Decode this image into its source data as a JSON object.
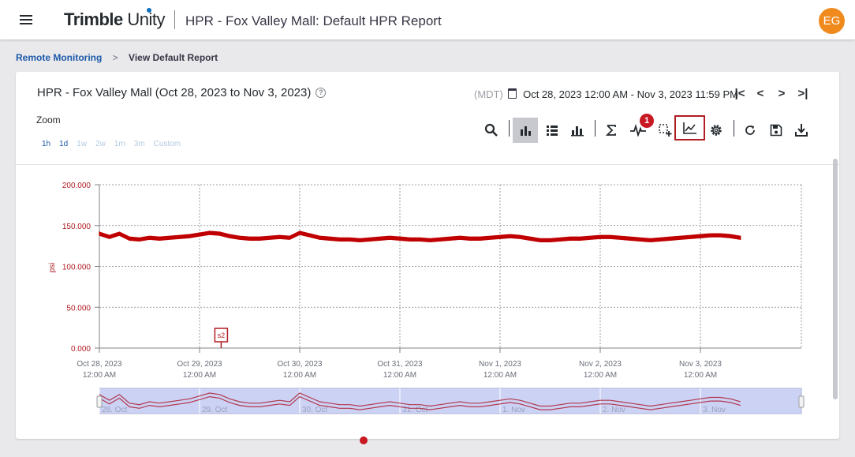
{
  "app": {
    "brand_bold": "Trimble",
    "brand_light": " Unity",
    "page_title": "HPR - Fox Valley Mall: Default HPR Report",
    "avatar_initials": "EG",
    "avatar_color": "#f08a1d"
  },
  "breadcrumb": {
    "parent": "Remote Monitoring",
    "separator": ">",
    "current": "View Default Report"
  },
  "report": {
    "title": "HPR - Fox Valley Mall (Oct 28, 2023 to Nov 3, 2023)",
    "help_icon": "?",
    "timezone": "(MDT)",
    "range_text": "Oct 28, 2023 12:00 AM - Nov 3, 2023 11:59 PM",
    "nav": {
      "first": "|<",
      "prev": "<",
      "next": ">",
      "last": ">|"
    }
  },
  "zoom": {
    "label": "Zoom",
    "options": [
      "1h",
      "1d",
      "1w",
      "2w",
      "1m",
      "3m",
      "Custom"
    ],
    "enabled": [
      "1h",
      "1d"
    ]
  },
  "toolbar": {
    "tools": [
      "search-icon",
      "bar-chart-icon",
      "list-icon",
      "stacked-bar-icon",
      "sigma-icon",
      "pulse-icon",
      "box-select-icon",
      "line-chart-icon",
      "gear-icon",
      "refresh-icon",
      "save-icon",
      "download-icon"
    ],
    "active_tool": "bar-chart-icon",
    "highlighted_tool": "line-chart-icon",
    "alarm_badge": "1",
    "accent_color": "#b01c22"
  },
  "chart_data": {
    "type": "line",
    "ylabel": "psi",
    "xlabel": "",
    "ylim": [
      0,
      200
    ],
    "yticks": [
      "0.000",
      "50.000",
      "100.000",
      "150.000",
      "200.000"
    ],
    "x_tick_labels": [
      [
        "Oct 28, 2023",
        "12:00 AM"
      ],
      [
        "Oct 29, 2023",
        "12:00 AM"
      ],
      [
        "Oct 30, 2023",
        "12:00 AM"
      ],
      [
        "Oct 31, 2023",
        "12:00 AM"
      ],
      [
        "Nov 1, 2023",
        "12:00 AM"
      ],
      [
        "Nov 2, 2023",
        "12:00 AM"
      ],
      [
        "Nov 3, 2023",
        "12:00 AM"
      ]
    ],
    "xlim_days": [
      0,
      7.0
    ],
    "grid": true,
    "series": [
      {
        "color": "#c00000",
        "x_days": [
          0,
          0.1,
          0.2,
          0.3,
          0.4,
          0.5,
          0.6,
          0.7,
          0.8,
          0.9,
          1.0,
          1.1,
          1.2,
          1.3,
          1.4,
          1.5,
          1.6,
          1.7,
          1.8,
          1.9,
          2.0,
          2.1,
          2.2,
          2.3,
          2.4,
          2.5,
          2.6,
          2.7,
          2.8,
          2.9,
          3.0,
          3.1,
          3.2,
          3.3,
          3.4,
          3.5,
          3.6,
          3.7,
          3.8,
          3.9,
          4.0,
          4.1,
          4.2,
          4.3,
          4.4,
          4.5,
          4.6,
          4.7,
          4.8,
          4.9,
          5.0,
          5.1,
          5.2,
          5.3,
          5.4,
          5.5,
          5.6,
          5.7,
          5.8,
          5.9,
          6.0,
          6.1,
          6.2,
          6.3,
          6.4
        ],
        "values": [
          140,
          136,
          140,
          134,
          133,
          135,
          134,
          135,
          136,
          137,
          139,
          141,
          140,
          137,
          135,
          134,
          134,
          135,
          136,
          135,
          141,
          138,
          135,
          134,
          133,
          133,
          132,
          133,
          134,
          135,
          134,
          133,
          133,
          132,
          133,
          134,
          135,
          134,
          134,
          135,
          136,
          137,
          136,
          134,
          132,
          132,
          133,
          134,
          134,
          135,
          136,
          136,
          135,
          134,
          133,
          132,
          133,
          134,
          135,
          136,
          137,
          138,
          138,
          137,
          135
        ],
        "band": 4
      }
    ],
    "annotations": [
      {
        "text": "s2",
        "x_day": 1.2
      }
    ],
    "navigator_labels": [
      "28. Oct",
      "29. Oct",
      "30. Oct",
      "31. Oct",
      "1. Nov",
      "2. Nov",
      "3. Nov"
    ]
  }
}
